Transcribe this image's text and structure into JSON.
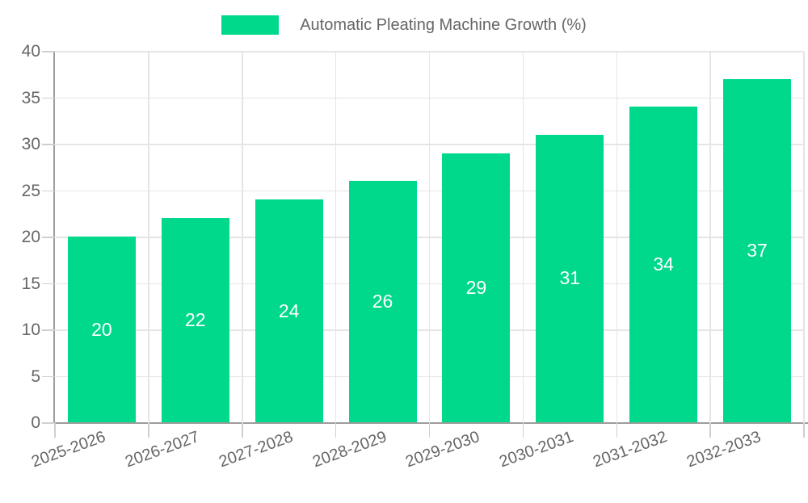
{
  "chart_data": {
    "type": "bar",
    "title": "Automatic Pleating Machine Growth (%)",
    "categories": [
      "2025-2026",
      "2026-2027",
      "2027-2028",
      "2028-2029",
      "2029-2030",
      "2030-2031",
      "2031-2032",
      "2032-2033"
    ],
    "values": [
      20,
      22,
      24,
      26,
      29,
      31,
      34,
      37
    ],
    "xlabel": "",
    "ylabel": "",
    "ylim": [
      0,
      40
    ],
    "yticks": [
      0,
      5,
      10,
      15,
      20,
      25,
      30,
      35,
      40
    ],
    "grid": true,
    "legend_position": "top",
    "x_label_rotation_deg": -20,
    "bar_color": "#00D98B",
    "bar_label_color": "#FFFFFF",
    "grid_color": "#E5E5E5",
    "tick_color": "#CFCFCF",
    "axis_color": "#9D9D9D",
    "text_color": "#666666"
  }
}
